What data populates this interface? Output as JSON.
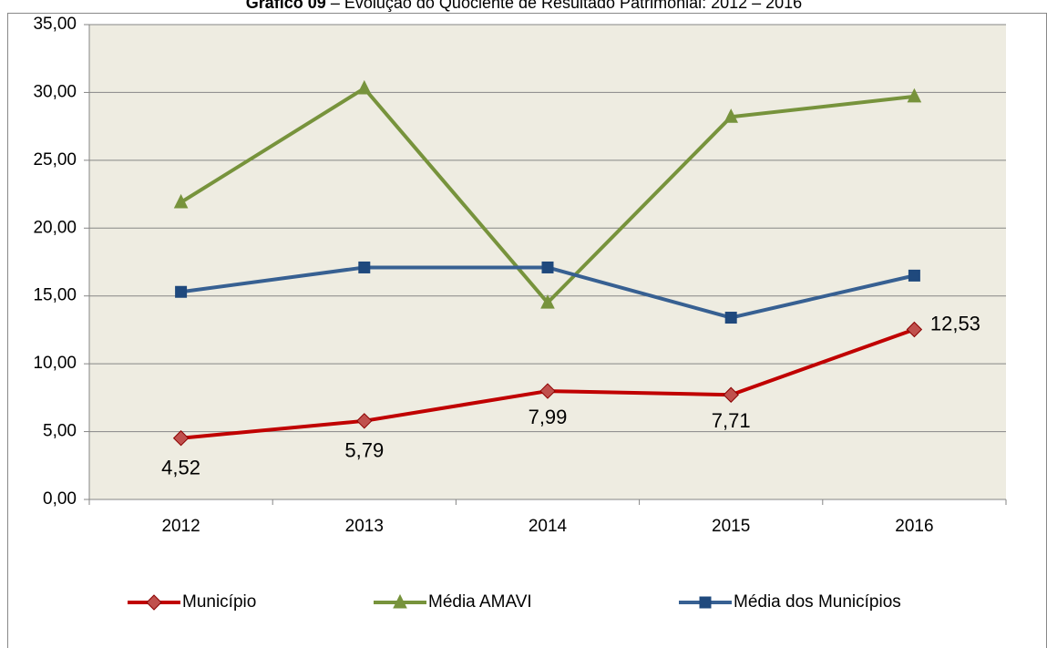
{
  "chart_data": {
    "type": "line",
    "title_label": "Gráfico 09",
    "title": "– Evolução do Quociente de Resultado Patrimonial: 2012 – 2016",
    "categories": [
      "2012",
      "2013",
      "2014",
      "2015",
      "2016"
    ],
    "series": [
      {
        "name": "Município",
        "color": "#c00000",
        "marker": "diamond",
        "marker_color": "#c0504d",
        "values": [
          4.52,
          5.79,
          7.99,
          7.71,
          12.53
        ],
        "value_labels": [
          "4,52",
          "5,79",
          "7,99",
          "7,71",
          "12,53"
        ]
      },
      {
        "name": "Média AMAVI",
        "color": "#77933c",
        "marker": "triangle",
        "marker_color": "#77933c",
        "values": [
          21.9,
          30.3,
          14.5,
          28.2,
          29.7
        ]
      },
      {
        "name": "Média dos Municípios",
        "color": "#376092",
        "marker": "square",
        "marker_color": "#1f497d",
        "values": [
          15.3,
          17.1,
          17.1,
          13.4,
          16.5
        ]
      }
    ],
    "ylim": [
      0,
      35
    ],
    "yticks": [
      {
        "value": 0,
        "label": "0,00"
      },
      {
        "value": 5,
        "label": "5,00"
      },
      {
        "value": 10,
        "label": "10,00"
      },
      {
        "value": 15,
        "label": "15,00"
      },
      {
        "value": 20,
        "label": "20,00"
      },
      {
        "value": 25,
        "label": "25,00"
      },
      {
        "value": 30,
        "label": "30,00"
      },
      {
        "value": 35,
        "label": "35,00"
      }
    ],
    "grid": true,
    "legend": "bottom",
    "background": "#eeece1"
  }
}
